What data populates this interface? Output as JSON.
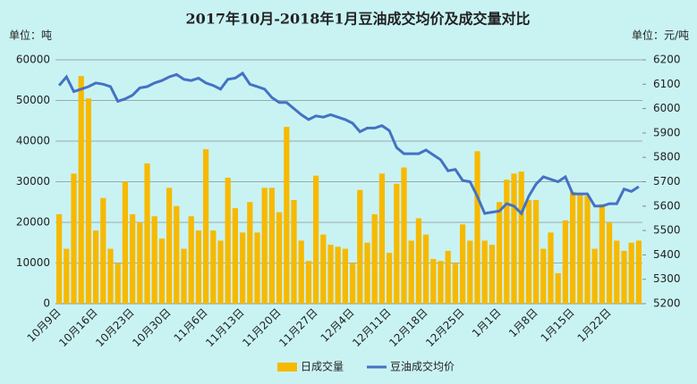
{
  "chart_data": {
    "type": "bar-line",
    "title": "2017年10月-2018年1月豆油成交均价及成交量对比",
    "y_unit": "单位：吨",
    "y2_unit": "单位：元/吨",
    "categories": [
      "10月9日",
      null,
      null,
      null,
      null,
      "10月16日",
      null,
      null,
      null,
      null,
      "10月23日",
      null,
      null,
      null,
      null,
      "10月30日",
      null,
      null,
      null,
      null,
      "11月6日",
      null,
      null,
      null,
      null,
      "11月13日",
      null,
      null,
      null,
      null,
      "11月20日",
      null,
      null,
      null,
      null,
      "11月27日",
      null,
      null,
      null,
      null,
      "12月4日",
      null,
      null,
      null,
      null,
      "12月11日",
      null,
      null,
      null,
      null,
      "12月18日",
      null,
      null,
      null,
      null,
      "12月25日",
      null,
      null,
      null,
      null,
      "1月1日",
      null,
      null,
      null,
      null,
      "1月8日",
      null,
      null,
      null,
      null,
      "1月15日",
      null,
      null,
      null,
      null,
      "1月22日",
      null,
      null,
      null,
      null
    ],
    "series": [
      {
        "name": "日成交量",
        "color": "#f7b900",
        "kind": "bar",
        "values": [
          22000,
          13500,
          32000,
          56000,
          50500,
          18000,
          26000,
          13500,
          10000,
          30000,
          22000,
          20000,
          34500,
          21500,
          16000,
          28500,
          24000,
          13500,
          21500,
          18000,
          38000,
          18000,
          15500,
          31000,
          23500,
          17500,
          25000,
          17500,
          28500,
          28500,
          22500,
          43500,
          25500,
          15500,
          10500,
          31500,
          17000,
          14500,
          14000,
          13500,
          10000,
          28000,
          15000,
          22000,
          32000,
          12500,
          29500,
          33500,
          15500,
          21000,
          17000,
          11000,
          10500,
          13000,
          10000,
          19500,
          15500,
          37500,
          15500,
          14500,
          25000,
          30500,
          32000,
          32500,
          25500,
          25500,
          13500,
          17500,
          7500,
          20500,
          27500,
          27000,
          26500,
          13500,
          24500,
          20000,
          15500,
          13000,
          15000,
          15500
        ]
      },
      {
        "name": "豆油成交均价",
        "color": "#4472c4",
        "kind": "line",
        "axis": "y2",
        "values": [
          6095,
          6130,
          6070,
          6080,
          6090,
          6105,
          6100,
          6090,
          6030,
          6040,
          6055,
          6085,
          6090,
          6105,
          6115,
          6130,
          6140,
          6120,
          6115,
          6125,
          6105,
          6095,
          6080,
          6120,
          6125,
          6145,
          6100,
          6090,
          6080,
          6045,
          6025,
          6025,
          6000,
          5975,
          5955,
          5970,
          5965,
          5975,
          5965,
          5955,
          5940,
          5905,
          5920,
          5920,
          5930,
          5910,
          5840,
          5815,
          5815,
          5815,
          5830,
          5810,
          5790,
          5745,
          5750,
          5705,
          5700,
          5640,
          5570,
          5575,
          5580,
          5610,
          5600,
          5570,
          5640,
          5690,
          5720,
          5710,
          5700,
          5720,
          5650,
          5650,
          5650,
          5600,
          5600,
          5610,
          5610,
          5670,
          5660,
          5680
        ]
      }
    ],
    "ylim": [
      0,
      60000
    ],
    "yticks": [
      0,
      10000,
      20000,
      30000,
      40000,
      50000,
      60000
    ],
    "y2lim": [
      5200,
      6200
    ],
    "y2ticks": [
      5200,
      5300,
      5400,
      5500,
      5600,
      5700,
      5800,
      5900,
      6000,
      6100,
      6200
    ],
    "grid": true,
    "legend": "bottom"
  }
}
